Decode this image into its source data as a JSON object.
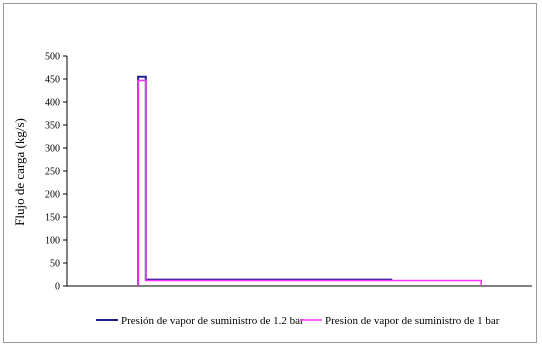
{
  "chart_data": {
    "type": "line",
    "title": "",
    "xlabel": "",
    "ylabel": "Flujo de carga (kg/s)",
    "ylim": [
      0,
      500
    ],
    "yticks": [
      0,
      50,
      100,
      150,
      200,
      250,
      300,
      350,
      400,
      450,
      500
    ],
    "grid": false,
    "legend_position": "bottom",
    "series": [
      {
        "name": "Presión de vapor de suministro de 1.2 bar",
        "color": "#1f1f8f",
        "x": [
          0.0,
          0.0,
          0.03,
          0.03,
          1.0
        ],
        "y": [
          0,
          455,
          455,
          14,
          14
        ]
      },
      {
        "name": "Presion de vapor de suministro de 1 bar",
        "color": "#ff33ff",
        "x": [
          0.0,
          0.0,
          0.03,
          0.03,
          1.35,
          1.35
        ],
        "y": [
          0,
          447,
          447,
          12,
          12,
          0
        ]
      }
    ],
    "xlim": [
      -0.28,
      1.55
    ]
  }
}
